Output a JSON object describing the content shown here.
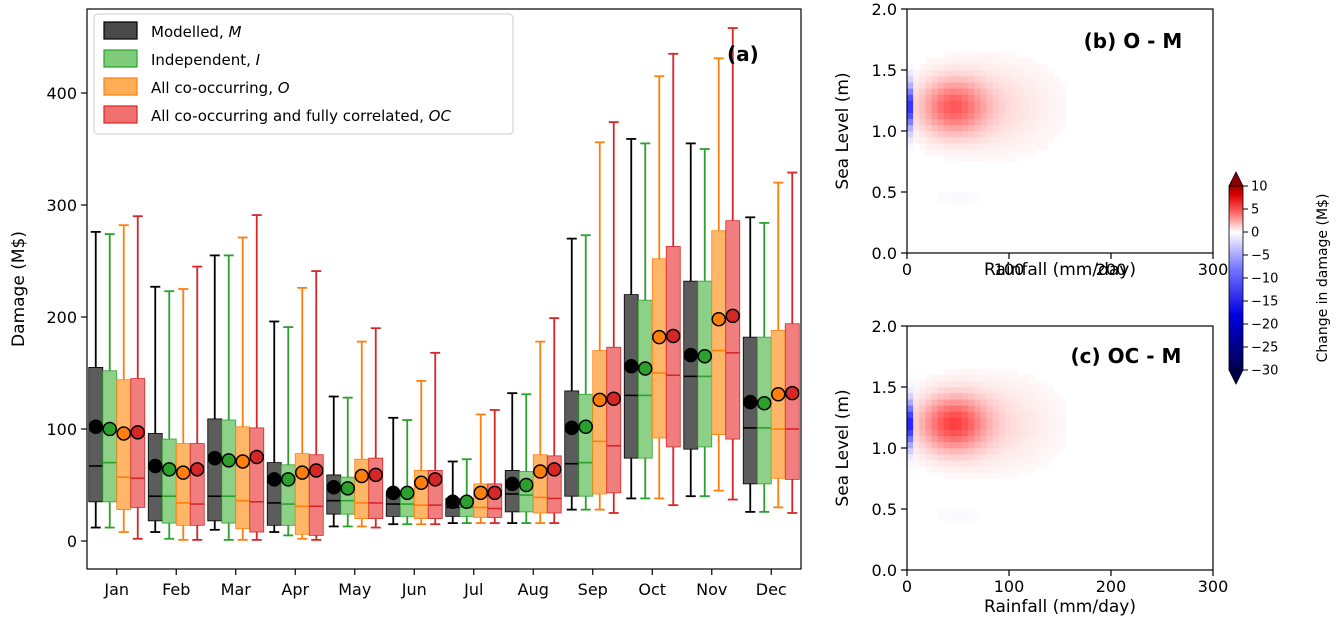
{
  "chart_data": [
    {
      "type": "box",
      "panel_label": "(a)",
      "ylabel": "Damage (M$)",
      "ylim": [
        -25,
        475
      ],
      "yticks": [
        0,
        100,
        200,
        300,
        400
      ],
      "categories": [
        "Jan",
        "Feb",
        "Mar",
        "Apr",
        "May",
        "Jun",
        "Jul",
        "Aug",
        "Sep",
        "Oct",
        "Nov",
        "Dec"
      ],
      "legend_position": "top-left",
      "series": [
        {
          "name": "Modelled, M",
          "color": "#4a4a4a",
          "whisker_color": "#000000",
          "min": [
            12,
            8,
            10,
            8,
            13,
            15,
            16,
            16,
            28,
            38,
            40,
            26
          ],
          "q1": [
            35,
            18,
            18,
            14,
            24,
            22,
            22,
            26,
            40,
            74,
            82,
            51
          ],
          "median": [
            67,
            40,
            40,
            34,
            36,
            33,
            30,
            42,
            69,
            130,
            147,
            101
          ],
          "q3": [
            155,
            96,
            109,
            70,
            59,
            44,
            38,
            63,
            134,
            220,
            232,
            182
          ],
          "max": [
            276,
            227,
            255,
            196,
            129,
            110,
            71,
            132,
            270,
            359,
            355,
            289
          ],
          "mean": [
            102,
            67,
            74,
            55,
            48,
            43,
            35,
            51,
            101,
            156,
            166,
            124
          ]
        },
        {
          "name": "Independent, I",
          "color": "#7fcc7a",
          "whisker_color": "#2ca02c",
          "min": [
            12,
            2,
            1,
            5,
            13,
            15,
            16,
            16,
            28,
            38,
            40,
            26
          ],
          "q1": [
            35,
            16,
            16,
            14,
            24,
            22,
            22,
            26,
            40,
            74,
            84,
            51
          ],
          "median": [
            70,
            40,
            40,
            33,
            36,
            33,
            30,
            41,
            70,
            130,
            147,
            101
          ],
          "q3": [
            152,
            91,
            108,
            68,
            57,
            42,
            38,
            62,
            131,
            215,
            232,
            182
          ],
          "max": [
            274,
            223,
            255,
            191,
            128,
            108,
            73,
            131,
            273,
            355,
            350,
            284
          ],
          "mean": [
            100,
            64,
            72,
            55,
            47,
            43,
            35,
            50,
            102,
            154,
            165,
            123
          ]
        },
        {
          "name": "All co-occurring, O",
          "color": "#ffae57",
          "whisker_color": "#ff7f0e",
          "min": [
            8,
            1,
            1,
            2,
            13,
            15,
            16,
            16,
            28,
            38,
            45,
            30
          ],
          "q1": [
            28,
            14,
            11,
            6,
            20,
            20,
            21,
            25,
            42,
            92,
            95,
            56
          ],
          "median": [
            57,
            34,
            36,
            31,
            34,
            32,
            30,
            39,
            89,
            150,
            170,
            100
          ],
          "q3": [
            144,
            87,
            102,
            78,
            73,
            63,
            51,
            77,
            170,
            252,
            277,
            188
          ],
          "max": [
            282,
            225,
            271,
            226,
            178,
            143,
            113,
            178,
            356,
            415,
            431,
            320
          ],
          "mean": [
            96,
            61,
            71,
            61,
            58,
            52,
            43,
            62,
            126,
            182,
            198,
            131
          ]
        },
        {
          "name": "All co-occurring and fully correlated, OC",
          "color": "#f07070",
          "whisker_color": "#d62728",
          "min": [
            2,
            1,
            1,
            1,
            12,
            15,
            16,
            16,
            25,
            32,
            37,
            25
          ],
          "q1": [
            30,
            14,
            8,
            5,
            20,
            20,
            21,
            25,
            43,
            84,
            91,
            55
          ],
          "median": [
            56,
            33,
            35,
            31,
            34,
            32,
            29,
            38,
            85,
            148,
            168,
            100
          ],
          "q3": [
            145,
            87,
            101,
            77,
            74,
            63,
            51,
            76,
            173,
            263,
            286,
            194
          ],
          "max": [
            290,
            245,
            291,
            241,
            190,
            168,
            117,
            199,
            374,
            435,
            458,
            329
          ],
          "mean": [
            97,
            64,
            75,
            63,
            59,
            55,
            43,
            64,
            127,
            183,
            201,
            132
          ]
        }
      ]
    },
    {
      "type": "heatmap",
      "title": "(b) O - M",
      "xlabel": "Rainfall (mm/day)",
      "ylabel": "Sea Level (m)",
      "xlim": [
        0,
        300
      ],
      "ylim": [
        0.0,
        2.0
      ],
      "xticks": [
        0,
        100,
        200,
        300
      ],
      "yticks": [
        "0.0",
        "0.5",
        "1.0",
        "1.5",
        "2.0"
      ],
      "value_peak": 6,
      "negative_band": -24
    },
    {
      "type": "heatmap",
      "title": "(c) OC - M",
      "xlabel": "Rainfall (mm/day)",
      "ylabel": "Sea Level (m)",
      "xlim": [
        0,
        300
      ],
      "ylim": [
        0.0,
        2.0
      ],
      "xticks": [
        0,
        100,
        200,
        300
      ],
      "yticks": [
        "0.0",
        "0.5",
        "1.0",
        "1.5",
        "2.0"
      ],
      "value_peak": 7,
      "negative_band": -26
    }
  ],
  "colorbar": {
    "label": "Change in damage (M$)",
    "range": [
      -30,
      10
    ],
    "ticks": [
      "10",
      "5",
      "0",
      "−10",
      "−15",
      "−20",
      "−25",
      "−30"
    ],
    "tick_values": [
      10,
      5,
      0,
      -10,
      -15,
      -20,
      -25,
      -30
    ],
    "extra_tick": "−5",
    "extra_tick_value": -5,
    "cmap": "seismic"
  }
}
